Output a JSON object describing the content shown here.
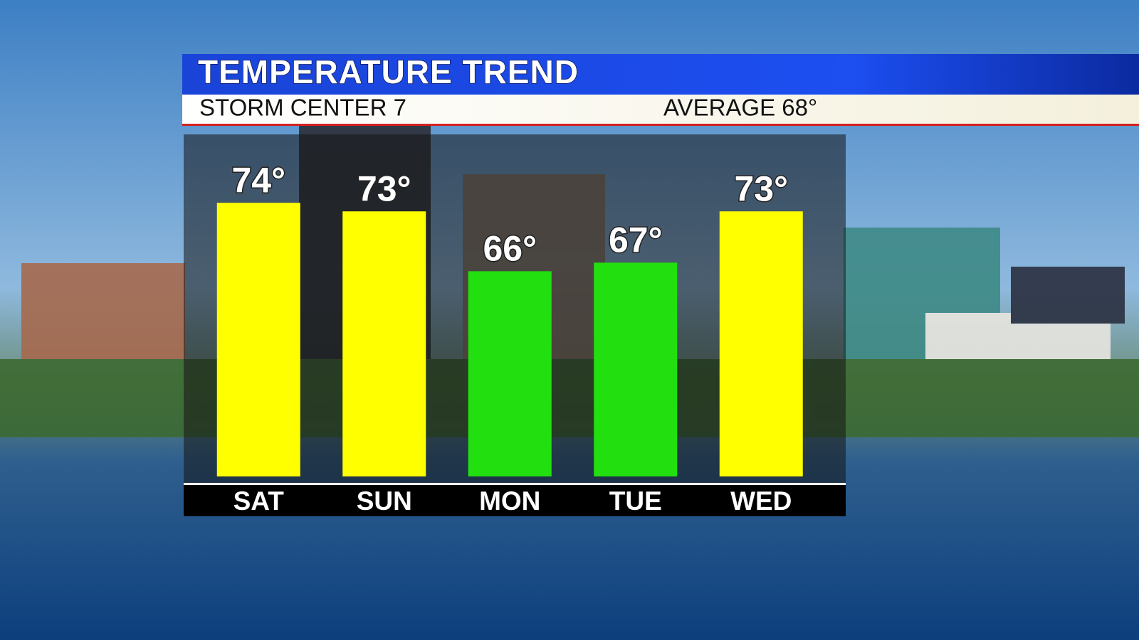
{
  "chart_data": {
    "type": "bar",
    "title": "TEMPERATURE TREND",
    "subtitle": "STORM CENTER 7",
    "annotation": "AVERAGE 68°",
    "categories": [
      "SAT",
      "SUN",
      "MON",
      "TUE",
      "WED"
    ],
    "values": [
      74,
      73,
      66,
      67,
      73
    ],
    "value_labels": [
      "74°",
      "73°",
      "66°",
      "67°",
      "73°"
    ],
    "colors": [
      "#ffff00",
      "#ffff00",
      "#22e00f",
      "#22e00f",
      "#ffff00"
    ],
    "ylim": [
      42,
      82
    ]
  }
}
